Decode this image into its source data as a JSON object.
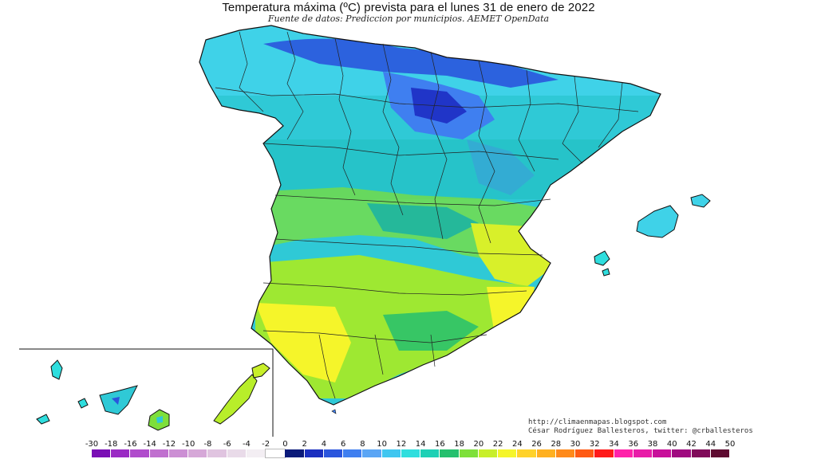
{
  "header": {
    "title": "Temperatura máxima (ºC) prevista para el lunes 31 de enero de 2022",
    "subtitle": "Fuente de datos: Prediccion por municipios. AEMET OpenData"
  },
  "credits": {
    "url": "http://climaenmapas.blogspot.com",
    "author": "César Rodríguez Ballesteros, twitter: @crballesteros"
  },
  "legend": {
    "ticks": [
      "-30",
      "-18",
      "-16",
      "-14",
      "-12",
      "-10",
      "-8",
      "-6",
      "-4",
      "-2",
      "0",
      "2",
      "4",
      "6",
      "8",
      "10",
      "12",
      "14",
      "16",
      "18",
      "20",
      "22",
      "24",
      "26",
      "28",
      "30",
      "32",
      "34",
      "36",
      "38",
      "40",
      "42",
      "44",
      "50"
    ],
    "colors": [
      "#7a0fb5",
      "#9a2ac4",
      "#b04ccc",
      "#c070cf",
      "#cc8fd4",
      "#d6a8d8",
      "#e0c4e0",
      "#e9dbe9",
      "#f3eef3",
      "#ffffff",
      "#0a1a7a",
      "#1a2fc0",
      "#2a55dd",
      "#3f7ff0",
      "#5aa5f5",
      "#3fc6f0",
      "#2fdede",
      "#1ed0b5",
      "#25c06e",
      "#7ee03a",
      "#c8ef2a",
      "#f5f52a",
      "#ffd22a",
      "#ffb020",
      "#ff8a1a",
      "#ff5a14",
      "#ff1a1a",
      "#ff22aa",
      "#e81ca8",
      "#c80f9a",
      "#a00a80",
      "#800a5a",
      "#5e0a30"
    ]
  },
  "regions": {
    "peninsula": "Península Ibérica",
    "baleares": "Islas Baleares",
    "canarias": "Islas Canarias"
  }
}
